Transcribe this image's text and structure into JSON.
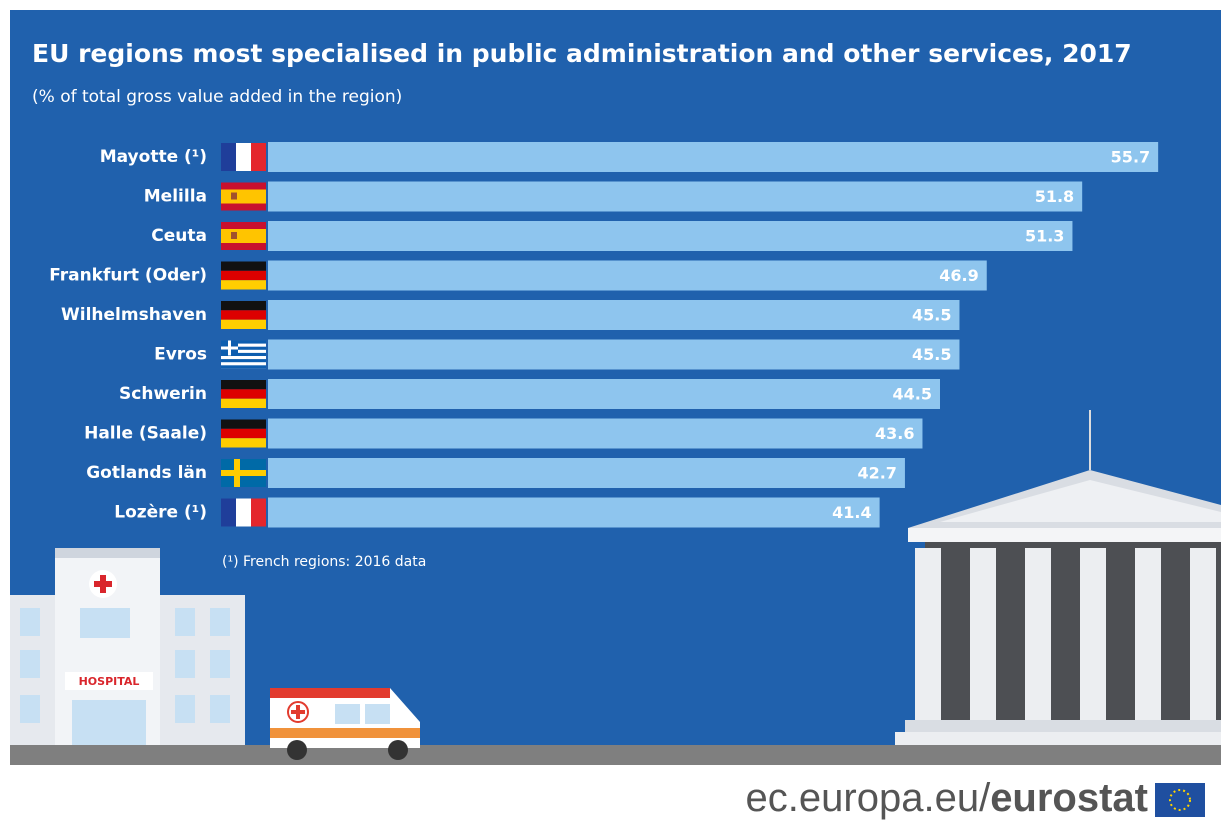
{
  "chart_data": {
    "type": "bar",
    "orientation": "horizontal",
    "title": "EU regions most specialised in public administration and other services, 2017",
    "subtitle": "(% of total gross value added in the region)",
    "categories": [
      "Mayotte (¹)",
      "Melilla",
      "Ceuta",
      "Frankfurt (Oder)",
      "Wilhelmshaven",
      "Evros",
      "Schwerin",
      "Halle (Saale)",
      "Gotlands län",
      "Lozère (¹)"
    ],
    "values": [
      55.7,
      51.8,
      51.3,
      46.9,
      45.5,
      45.5,
      44.5,
      43.6,
      42.7,
      41.4
    ],
    "color": "#8ec5ee",
    "xlim": [
      10,
      56
    ],
    "footnote": "(¹) French regions: 2016 data"
  },
  "footer": {
    "url": "ec.europa.eu/",
    "brand": "eurostat"
  }
}
